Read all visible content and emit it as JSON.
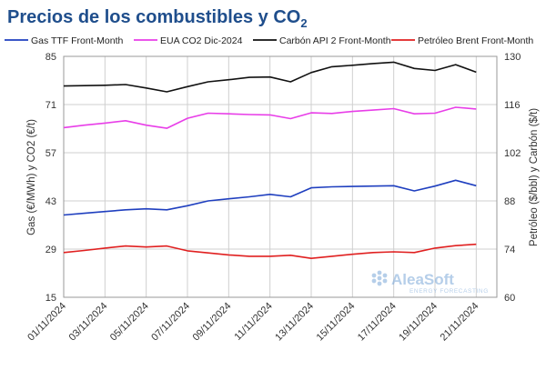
{
  "chart_data": {
    "type": "line",
    "title_main": "Precios de los combustibles y CO",
    "title_sub": "2",
    "x": [
      "01/11/2024",
      "02/11/2024",
      "03/11/2024",
      "04/11/2024",
      "05/11/2024",
      "06/11/2024",
      "07/11/2024",
      "08/11/2024",
      "09/11/2024",
      "10/11/2024",
      "11/11/2024",
      "12/11/2024",
      "13/11/2024",
      "14/11/2024",
      "15/11/2024",
      "16/11/2024",
      "17/11/2024",
      "18/11/2024",
      "19/11/2024",
      "20/11/2024",
      "21/11/2024",
      "22/11/2024"
    ],
    "x_tick_labels": [
      "01/11/2024",
      "03/11/2024",
      "05/11/2024",
      "07/11/2024",
      "09/11/2024",
      "11/11/2024",
      "13/11/2024",
      "15/11/2024",
      "17/11/2024",
      "19/11/2024",
      "21/11/2024"
    ],
    "ylabel_left": "Gas (€/MWh) y CO2 (€/t)",
    "ylabel_right": "Petróleo ($/bbl) y Carbón ($/t)",
    "ylim_left": [
      15,
      85
    ],
    "yticks_left": [
      "15",
      "29",
      "43",
      "57",
      "71",
      "85"
    ],
    "ylim_right": [
      60,
      130
    ],
    "yticks_right": [
      "60",
      "74",
      "88",
      "102",
      "116",
      "130"
    ],
    "legend_position": "top",
    "grid": true,
    "series": [
      {
        "name": "Gas TTF Front-Month",
        "color": "#1f3fbf",
        "axis": "left",
        "values": [
          38.9,
          39.4,
          39.9,
          40.4,
          40.7,
          40.4,
          41.6,
          43.0,
          43.6,
          44.2,
          44.9,
          44.2,
          46.8,
          47.1,
          47.2,
          47.3,
          47.4,
          45.9,
          47.3,
          49.0,
          47.4,
          null
        ]
      },
      {
        "name": "EUA CO2 Dic-2024",
        "color": "#e83ee8",
        "axis": "left",
        "values": [
          64.3,
          65.0,
          65.6,
          66.3,
          65.0,
          64.1,
          67.0,
          68.5,
          68.3,
          68.1,
          68.0,
          66.9,
          68.6,
          68.4,
          69.0,
          69.4,
          69.8,
          68.3,
          68.5,
          70.2,
          69.7,
          null
        ]
      },
      {
        "name": "Carbón API 2 Front-Month",
        "color": "#111111",
        "axis": "right",
        "values": [
          121.4,
          121.5,
          121.6,
          121.8,
          120.8,
          119.7,
          121.2,
          122.6,
          123.2,
          123.9,
          124.0,
          122.6,
          125.3,
          127.0,
          127.4,
          127.9,
          128.3,
          126.5,
          125.9,
          127.6,
          125.4,
          null
        ]
      },
      {
        "name": "Petróleo Brent Front-Month",
        "color": "#e02020",
        "axis": "right",
        "values": [
          73.0,
          73.6,
          74.3,
          74.9,
          74.6,
          74.9,
          73.5,
          72.9,
          72.3,
          71.9,
          71.9,
          72.2,
          71.3,
          71.9,
          72.5,
          73.0,
          73.2,
          73.0,
          74.3,
          75.0,
          75.4,
          null
        ]
      }
    ]
  },
  "logo": {
    "name": "AleaSoft",
    "tagline": "ENERGY FORECASTING"
  }
}
